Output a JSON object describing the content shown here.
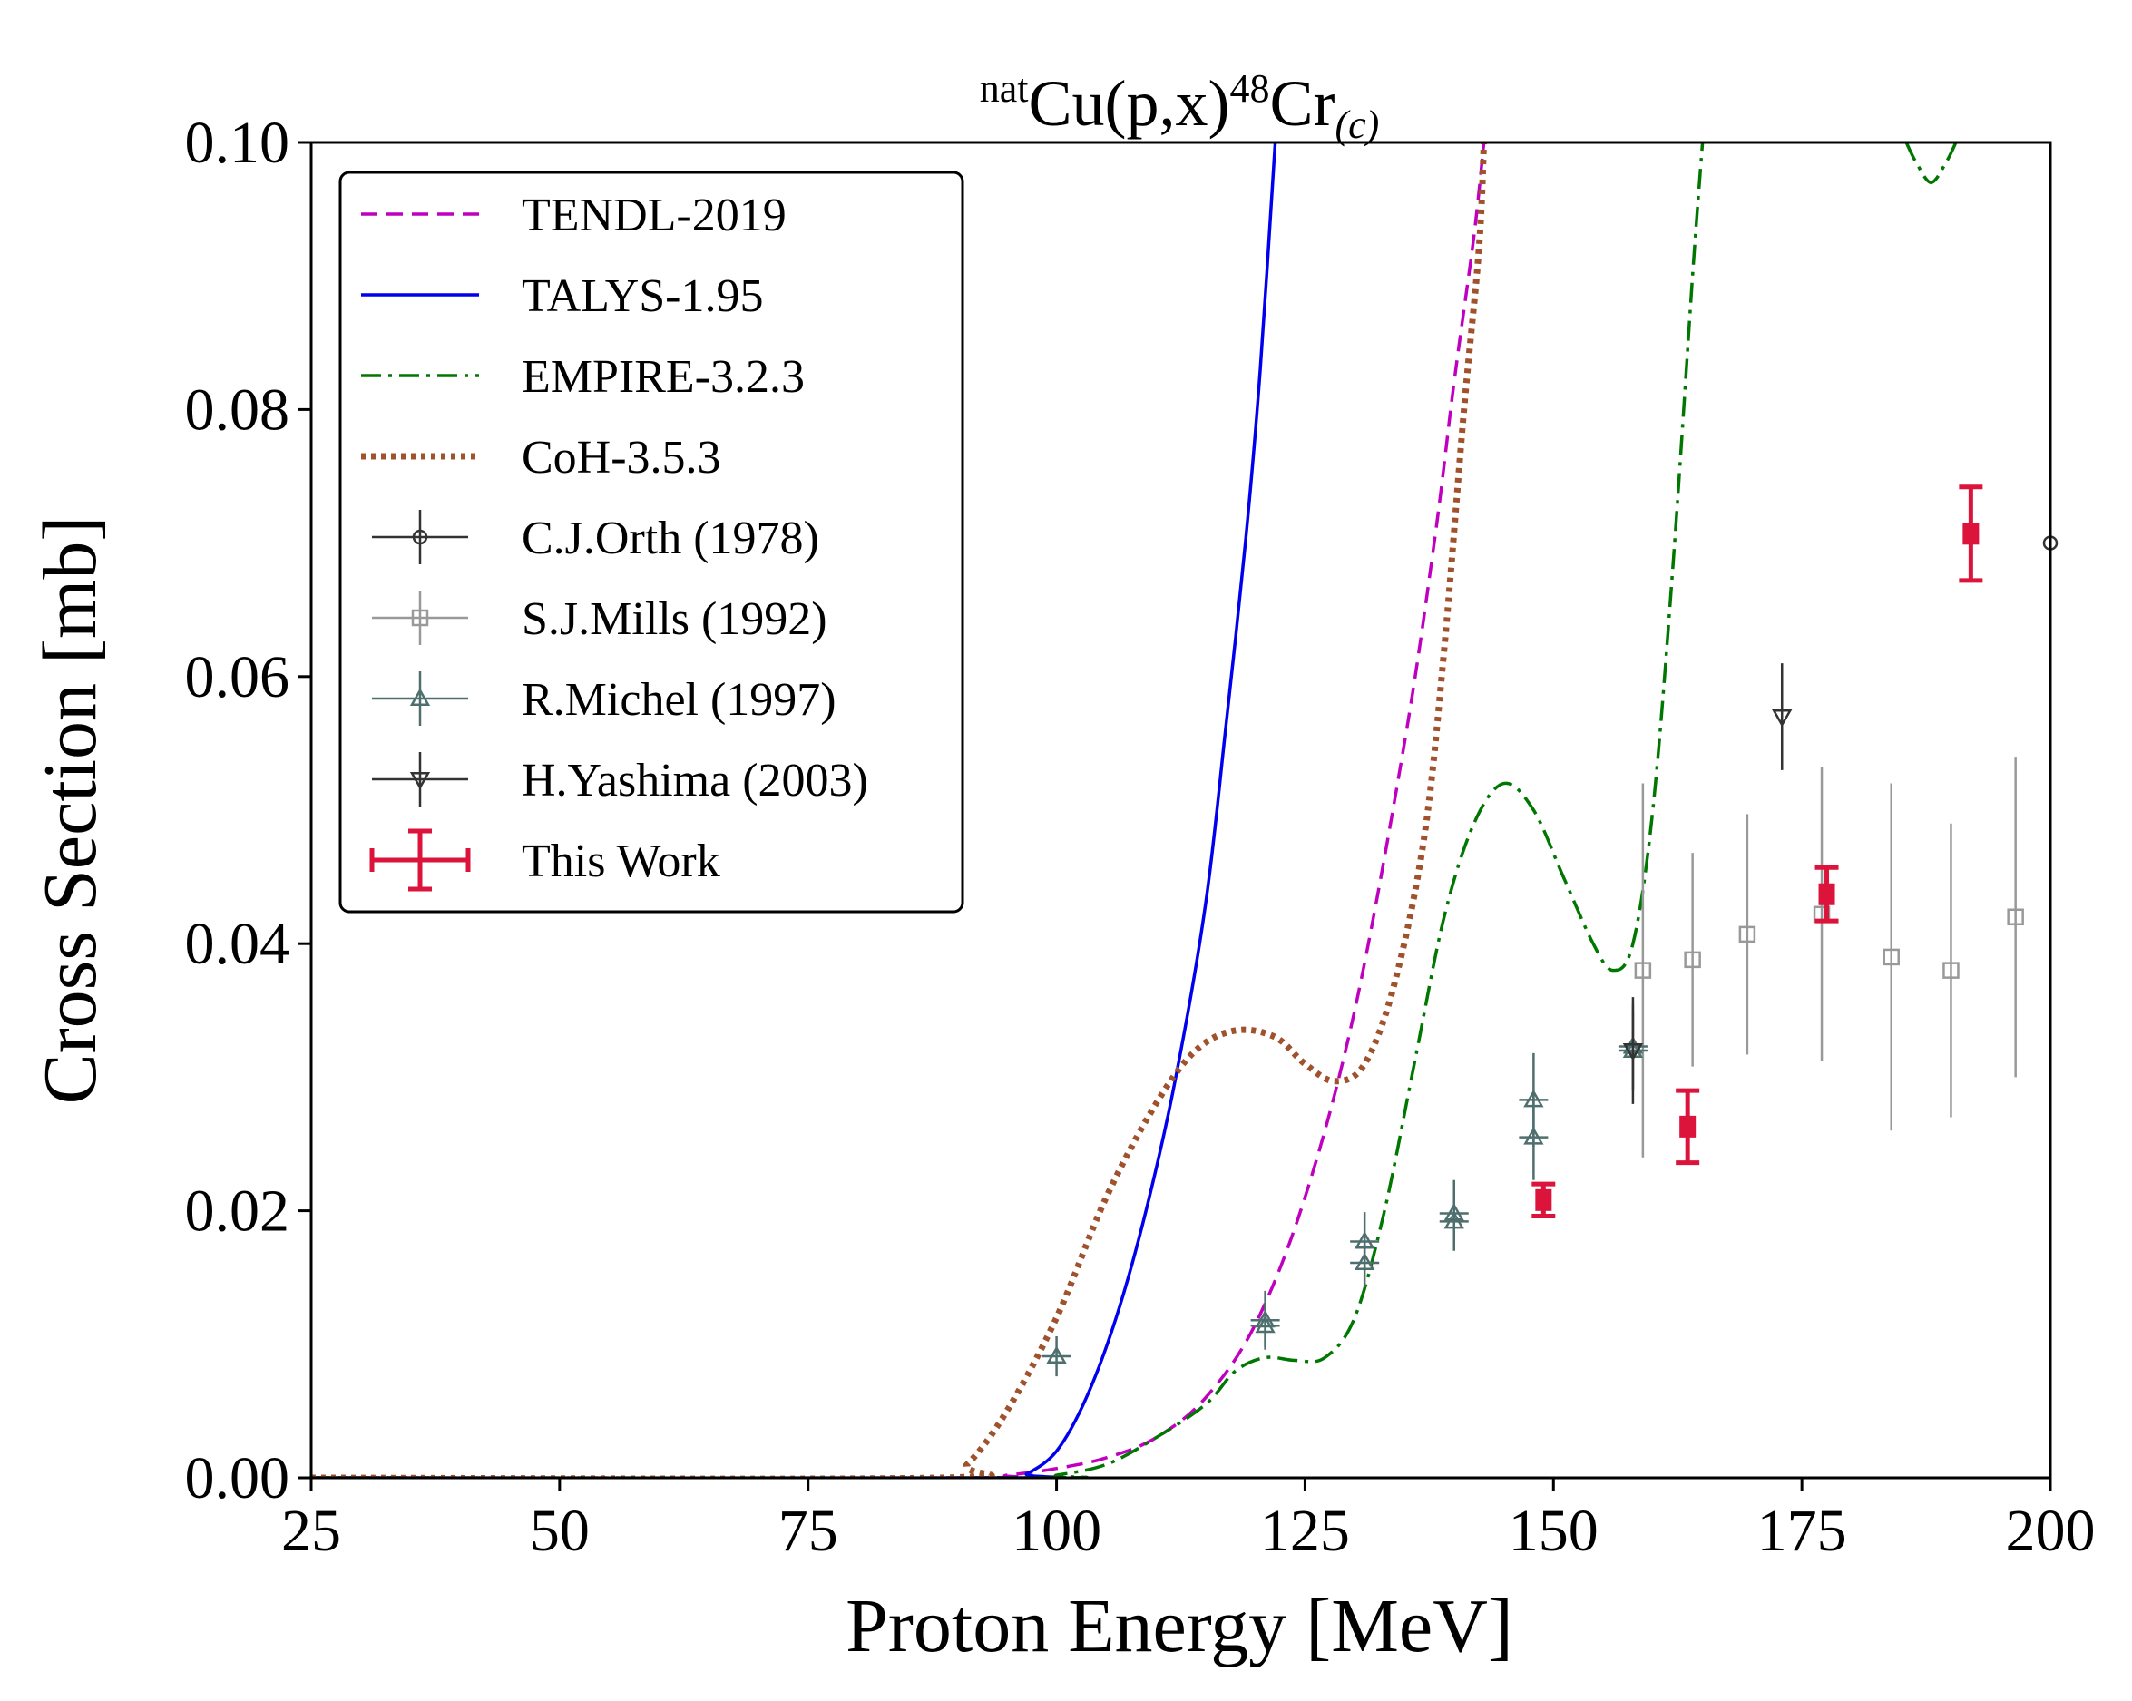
{
  "chart_data": {
    "type": "line",
    "title": {
      "prefix_sup": "nat",
      "main": "Cu(p,x)",
      "product_sup": "48",
      "product": "Cr",
      "suffix_sub": "(c)"
    },
    "xlabel": "Proton Energy [MeV]",
    "ylabel": "Cross Section [mb]",
    "xlim": [
      25,
      200
    ],
    "ylim": [
      0,
      0.1
    ],
    "xticks": [
      25,
      50,
      75,
      100,
      125,
      150,
      175,
      200
    ],
    "xtick_labels": [
      "25",
      "50",
      "75",
      "100",
      "125",
      "150",
      "175",
      "200"
    ],
    "yticks": [
      0,
      0.02,
      0.04,
      0.06,
      0.08,
      0.1
    ],
    "ytick_labels": [
      "0.00",
      "0.02",
      "0.04",
      "0.06",
      "0.08",
      "0.10"
    ],
    "legend_position": "top-left",
    "curves": [
      {
        "name": "TENDL-2019",
        "color": "#bf00bf",
        "style": "dashed",
        "points": [
          [
            25,
            0
          ],
          [
            90,
            0
          ],
          [
            95,
            0.0002
          ],
          [
            100,
            0.0007
          ],
          [
            105,
            0.0015
          ],
          [
            110,
            0.003
          ],
          [
            115,
            0.006
          ],
          [
            120,
            0.0115
          ],
          [
            125,
            0.021
          ],
          [
            130,
            0.035
          ],
          [
            135,
            0.055
          ],
          [
            138,
            0.07
          ],
          [
            140,
            0.082
          ],
          [
            142,
            0.093
          ],
          [
            143,
            0.1
          ]
        ]
      },
      {
        "name": "TALYS-1.95",
        "color": "#0000ee",
        "style": "solid",
        "points": [
          [
            25,
            0
          ],
          [
            95,
            0
          ],
          [
            97,
            0.0003
          ],
          [
            100,
            0.002
          ],
          [
            103,
            0.006
          ],
          [
            106,
            0.012
          ],
          [
            109,
            0.02
          ],
          [
            112,
            0.03
          ],
          [
            115,
            0.043
          ],
          [
            117,
            0.056
          ],
          [
            119,
            0.07
          ],
          [
            120.5,
            0.083
          ],
          [
            122,
            0.1
          ]
        ]
      },
      {
        "name": "EMPIRE-3.2.3",
        "color": "#007700",
        "style": "dashdot",
        "points": [
          [
            25,
            0
          ],
          [
            97,
            0
          ],
          [
            100,
            0.0002
          ],
          [
            105,
            0.001
          ],
          [
            110,
            0.003
          ],
          [
            115,
            0.0055
          ],
          [
            118,
            0.008
          ],
          [
            121,
            0.009
          ],
          [
            124,
            0.0088
          ],
          [
            127,
            0.009
          ],
          [
            130,
            0.012
          ],
          [
            133,
            0.02
          ],
          [
            136,
            0.031
          ],
          [
            139,
            0.042
          ],
          [
            142,
            0.049
          ],
          [
            145,
            0.052
          ],
          [
            148,
            0.05
          ],
          [
            151,
            0.045
          ],
          [
            154,
            0.04
          ],
          [
            156,
            0.038
          ],
          [
            158,
            0.04
          ],
          [
            160,
            0.05
          ],
          [
            162,
            0.068
          ],
          [
            164,
            0.09
          ],
          [
            165,
            0.1
          ]
        ],
        "segment2": [
          [
            185.5,
            0.1
          ],
          [
            186.5,
            0.0985
          ],
          [
            188,
            0.097
          ],
          [
            189.5,
            0.0985
          ],
          [
            190.5,
            0.1
          ]
        ]
      },
      {
        "name": "CoH-3.5.3",
        "color": "#a0522d",
        "style": "dotted",
        "points": [
          [
            25,
            0
          ],
          [
            88,
            0
          ],
          [
            91,
            0.001
          ],
          [
            95,
            0.005
          ],
          [
            100,
            0.012
          ],
          [
            105,
            0.021
          ],
          [
            110,
            0.028
          ],
          [
            114,
            0.032
          ],
          [
            118,
            0.0335
          ],
          [
            122,
            0.033
          ],
          [
            125,
            0.031
          ],
          [
            128,
            0.0297
          ],
          [
            131,
            0.031
          ],
          [
            134,
            0.037
          ],
          [
            137,
            0.048
          ],
          [
            139,
            0.062
          ],
          [
            141,
            0.08
          ],
          [
            142.5,
            0.092
          ],
          [
            143,
            0.1
          ]
        ]
      }
    ],
    "series": [
      {
        "name": "C.J.Orth (1978)",
        "color": "#333333",
        "marker": "circle",
        "points": [
          [
            200,
            0.07,
            0.01
          ]
        ]
      },
      {
        "name": "S.J.Mills (1992)",
        "color": "#999999",
        "marker": "square",
        "points": [
          [
            159,
            0.038,
            0.014
          ],
          [
            164,
            0.0388,
            0.008
          ],
          [
            169.5,
            0.0407,
            0.009
          ],
          [
            177,
            0.0422,
            0.011
          ],
          [
            184,
            0.039,
            0.013
          ],
          [
            190,
            0.038,
            0.011
          ],
          [
            196.5,
            0.042,
            0.012
          ]
        ]
      },
      {
        "name": "R.Michel (1997)",
        "color": "#4f6f6f",
        "marker": "triangle-up",
        "points": [
          [
            100,
            0.0091,
            0.0015
          ],
          [
            121,
            0.0118,
            0.0022
          ],
          [
            121,
            0.0114,
            0.0016
          ],
          [
            131,
            0.0177,
            0.0022
          ],
          [
            131,
            0.0161,
            0.0018
          ],
          [
            140,
            0.0198,
            0.0025
          ],
          [
            140,
            0.0192,
            0.0022
          ],
          [
            148,
            0.0283,
            0.0035
          ],
          [
            148,
            0.0255,
            0.0032
          ],
          [
            158,
            0.0323,
            0.0032
          ],
          [
            158,
            0.032,
            0.003
          ]
        ]
      },
      {
        "name": "H.Yashima (2003)",
        "color": "#333333",
        "marker": "triangle-down",
        "points": [
          [
            158,
            0.032,
            0.004
          ],
          [
            173,
            0.057,
            0.004
          ]
        ]
      },
      {
        "name": "This Work",
        "color": "#dc143c",
        "marker": "square-filled",
        "points": [
          [
            149,
            0.0208,
            0.0012
          ],
          [
            163.5,
            0.0263,
            0.0027
          ],
          [
            177.5,
            0.0437,
            0.002
          ],
          [
            192,
            0.0707,
            0.0035
          ]
        ]
      }
    ]
  }
}
